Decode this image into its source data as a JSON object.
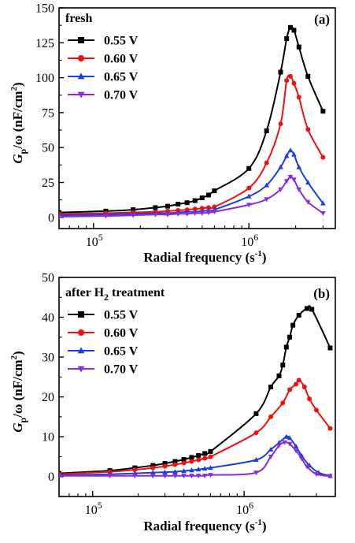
{
  "figure": {
    "colors": {
      "0.55 V": "#000000",
      "0.60 V": "#ee1111",
      "0.65 V": "#1a3fdc",
      "0.70 V": "#8a2be2"
    },
    "markers": {
      "0.55 V": "square",
      "0.60 V": "circle",
      "0.65 V": "triangle-up",
      "0.70 V": "triangle-down"
    }
  },
  "chart_data": [
    {
      "type": "line",
      "panel_label": "(a)",
      "title": "fresh",
      "xlabel": "Radial frequency (s",
      "xlabel_sup": "-1",
      "xlabel_end": ")",
      "ylabel": "G",
      "ylabel_sub": "p",
      "ylabel_rest": "/ω (nF/cm",
      "ylabel_sup": "2",
      "ylabel_end": ")",
      "xscale": "log",
      "xlim": [
        60000,
        3600000
      ],
      "ylim": [
        -8,
        150
      ],
      "yticks": [
        0,
        25,
        50,
        75,
        100,
        125,
        150
      ],
      "xticks": [
        {
          "value": 100000,
          "base": "10",
          "exp": "5"
        },
        {
          "value": 1000000,
          "base": "10",
          "exp": "6"
        }
      ],
      "legend_position": "top-left",
      "series": [
        {
          "name": "0.55 V",
          "x": [
            60000,
            120000,
            180000,
            250000,
            300000,
            350000,
            400000,
            450000,
            500000,
            550000,
            600000,
            1000000,
            1300000,
            1600000,
            1750000,
            1850000,
            1950000,
            2100000,
            2400000,
            3000000
          ],
          "y": [
            3.5,
            4.5,
            5.5,
            7,
            8,
            9.5,
            10.5,
            12,
            14,
            16,
            19,
            35,
            62,
            104,
            128,
            136,
            134,
            122,
            101,
            76
          ]
        },
        {
          "name": "0.60 V",
          "x": [
            60000,
            120000,
            180000,
            250000,
            300000,
            350000,
            400000,
            450000,
            500000,
            550000,
            600000,
            1000000,
            1300000,
            1600000,
            1750000,
            1850000,
            1950000,
            2100000,
            2400000,
            3000000
          ],
          "y": [
            2.5,
            3,
            3.5,
            4,
            4.5,
            5,
            5.5,
            6,
            6.5,
            7,
            7.5,
            21,
            39,
            67,
            98,
            101,
            96,
            86,
            63,
            43
          ]
        },
        {
          "name": "0.65 V",
          "x": [
            60000,
            120000,
            180000,
            250000,
            300000,
            350000,
            400000,
            450000,
            500000,
            550000,
            600000,
            1000000,
            1300000,
            1600000,
            1750000,
            1850000,
            1950000,
            2100000,
            2400000,
            3000000
          ],
          "y": [
            1.5,
            2,
            2.5,
            3,
            3,
            3.5,
            4,
            4,
            4.5,
            5,
            5.5,
            15,
            23,
            36,
            44,
            48,
            45,
            36,
            25,
            10
          ]
        },
        {
          "name": "0.70 V",
          "x": [
            60000,
            120000,
            180000,
            250000,
            300000,
            350000,
            400000,
            450000,
            500000,
            550000,
            600000,
            1000000,
            1300000,
            1600000,
            1750000,
            1850000,
            1950000,
            2100000,
            2400000,
            3000000
          ],
          "y": [
            0.5,
            1,
            1.5,
            2,
            2,
            2.5,
            2.5,
            3,
            3,
            3.5,
            4,
            9,
            13,
            20,
            26,
            29,
            27,
            20,
            11,
            3
          ]
        }
      ]
    },
    {
      "type": "line",
      "panel_label": "(b)",
      "title": "after H",
      "title_sub": "2",
      "title_rest": " treatment",
      "xlabel": "Radial frequency (s",
      "xlabel_sup": "-1",
      "xlabel_end": ")",
      "ylabel": "G",
      "ylabel_sub": "p",
      "ylabel_rest": "/ω (nF/cm",
      "ylabel_sup": "2",
      "ylabel_end": ")",
      "xscale": "log",
      "xlim": [
        60000,
        4000000
      ],
      "ylim": [
        -5,
        50
      ],
      "yticks": [
        0,
        10,
        20,
        30,
        40,
        50
      ],
      "xticks": [
        {
          "value": 100000,
          "base": "10",
          "exp": "5"
        },
        {
          "value": 1000000,
          "base": "10",
          "exp": "6"
        }
      ],
      "legend_position": "top-left",
      "series": [
        {
          "name": "0.55 V",
          "x": [
            60000,
            130000,
            190000,
            250000,
            300000,
            350000,
            400000,
            450000,
            500000,
            550000,
            600000,
            1200000,
            1500000,
            1700000,
            1800000,
            1900000,
            2000000,
            2100000,
            2300000,
            2600000,
            2800000,
            3700000
          ],
          "y": [
            0.8,
            1.5,
            2.2,
            2.8,
            3.3,
            3.8,
            4.3,
            4.8,
            5.3,
            5.8,
            6.3,
            15.8,
            22.5,
            25.3,
            28,
            32.5,
            35,
            38,
            40.5,
            42.2,
            42,
            32.3
          ]
        },
        {
          "name": "0.60 V",
          "x": [
            60000,
            130000,
            190000,
            250000,
            300000,
            350000,
            400000,
            450000,
            500000,
            550000,
            600000,
            1200000,
            1500000,
            1800000,
            2000000,
            2200000,
            2300000,
            2500000,
            2700000,
            3000000,
            3700000
          ],
          "y": [
            0.6,
            1.2,
            1.7,
            2.2,
            2.6,
            3,
            3.4,
            3.8,
            4.2,
            4.6,
            5,
            11,
            15,
            18.5,
            21.8,
            23.2,
            24.2,
            22.5,
            19.5,
            16.7,
            12.1
          ]
        },
        {
          "name": "0.65 V",
          "x": [
            60000,
            130000,
            190000,
            250000,
            300000,
            350000,
            400000,
            450000,
            500000,
            550000,
            600000,
            1200000,
            1500000,
            1700000,
            1900000,
            2000000,
            2200000,
            2400000,
            2700000,
            3100000,
            3700000
          ],
          "y": [
            0.3,
            0.6,
            0.8,
            1,
            1.1,
            1.2,
            1.4,
            1.6,
            1.8,
            2,
            2.2,
            4.2,
            6.8,
            8.5,
            10,
            9.7,
            7.6,
            5.2,
            2.8,
            1,
            0.2
          ]
        },
        {
          "name": "0.70 V",
          "x": [
            60000,
            130000,
            190000,
            250000,
            300000,
            350000,
            400000,
            450000,
            500000,
            550000,
            600000,
            1200000,
            1500000,
            1700000,
            1850000,
            2000000,
            2200000,
            2400000,
            2600000,
            3000000,
            3700000
          ],
          "y": [
            0.2,
            0.2,
            0.2,
            0.2,
            0.2,
            0.2,
            0.2,
            0.2,
            0.2,
            0.2,
            0.4,
            1,
            5,
            7.8,
            8.6,
            8.2,
            6.5,
            4.5,
            2.5,
            0.6,
            0.1
          ]
        }
      ]
    }
  ]
}
